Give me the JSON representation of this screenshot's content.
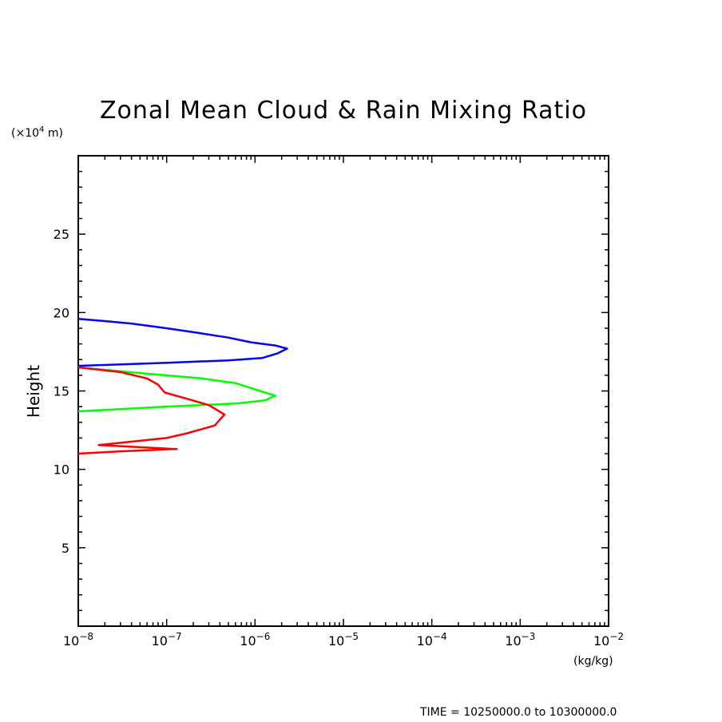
{
  "chart_data": {
    "type": "line",
    "title": "Zonal Mean Cloud & Rain Mixing Ratio",
    "ylabel": "Height",
    "y_unit_label": "(×10",
    "y_unit_exp": "4",
    "y_unit_suffix": " m)",
    "x_unit_label": "(kg/kg)",
    "footer": "TIME = 10250000.0 to 10300000.0",
    "xscale": "log",
    "xlim_exp": [
      -8,
      -2
    ],
    "ylim": [
      0,
      30
    ],
    "x_ticks": [
      {
        "base": "10",
        "exp": "−8"
      },
      {
        "base": "10",
        "exp": "−7"
      },
      {
        "base": "10",
        "exp": "−6"
      },
      {
        "base": "10",
        "exp": "−5"
      },
      {
        "base": "10",
        "exp": "−4"
      },
      {
        "base": "10",
        "exp": "−3"
      },
      {
        "base": "10",
        "exp": "−2"
      }
    ],
    "y_ticks": [
      {
        "value": 5,
        "label": "5"
      },
      {
        "value": 10,
        "label": "10"
      },
      {
        "value": 15,
        "label": "15"
      },
      {
        "value": 20,
        "label": "20"
      },
      {
        "value": 25,
        "label": "25"
      }
    ],
    "series": [
      {
        "name": "blue",
        "color": "#0000ff",
        "points": [
          [
            1e-08,
            19.6
          ],
          [
            1.6e-08,
            19.5
          ],
          [
            4e-08,
            19.3
          ],
          [
            1e-07,
            19.0
          ],
          [
            2.3e-07,
            18.7
          ],
          [
            5e-07,
            18.4
          ],
          [
            9e-07,
            18.1
          ],
          [
            1.7e-06,
            17.9
          ],
          [
            2.3e-06,
            17.7
          ],
          [
            1.8e-06,
            17.4
          ],
          [
            1.2e-06,
            17.1
          ],
          [
            5e-07,
            16.95
          ],
          [
            1e-07,
            16.8
          ],
          [
            1e-08,
            16.6
          ]
        ]
      },
      {
        "name": "green",
        "color": "#00ff00",
        "points": [
          [
            1e-08,
            16.5
          ],
          [
            6e-08,
            16.1
          ],
          [
            2.5e-07,
            15.8
          ],
          [
            6e-07,
            15.5
          ],
          [
            1e-06,
            15.1
          ],
          [
            1.7e-06,
            14.7
          ],
          [
            1.3e-06,
            14.4
          ],
          [
            6e-07,
            14.2
          ],
          [
            1e-07,
            14.0
          ],
          [
            1e-08,
            13.7
          ]
        ]
      },
      {
        "name": "red",
        "color": "#ff0000",
        "points": [
          [
            1e-08,
            16.5
          ],
          [
            3e-08,
            16.2
          ],
          [
            6e-08,
            15.8
          ],
          [
            8e-08,
            15.4
          ],
          [
            9.5e-08,
            14.9
          ],
          [
            1.7e-07,
            14.5
          ],
          [
            3e-07,
            14.1
          ],
          [
            4.5e-07,
            13.5
          ],
          [
            3.5e-07,
            12.8
          ],
          [
            1.7e-07,
            12.3
          ],
          [
            1e-07,
            12.0
          ],
          [
            1.7e-08,
            11.55
          ],
          [
            1.2e-07,
            11.3
          ],
          [
            1.3e-07,
            11.3
          ],
          [
            3e-08,
            11.15
          ],
          [
            1e-08,
            11.0
          ]
        ]
      }
    ]
  }
}
